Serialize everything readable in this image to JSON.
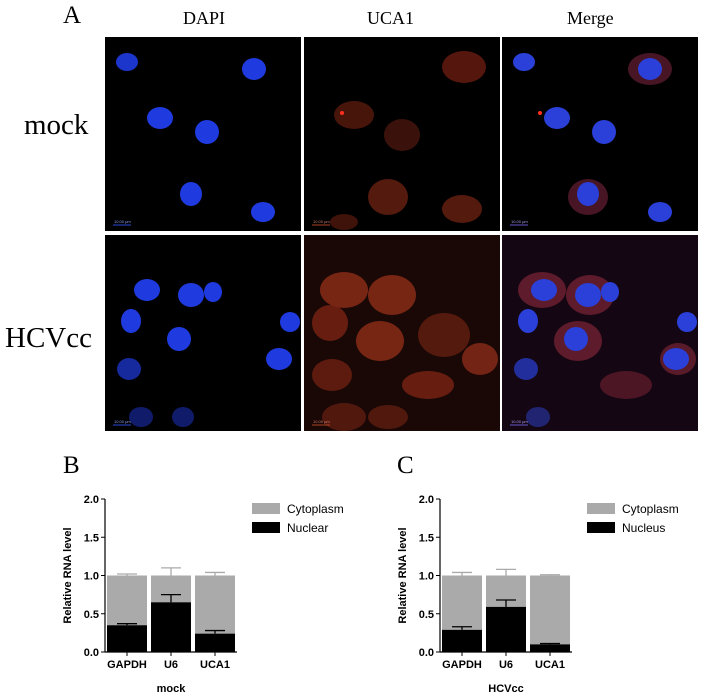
{
  "panelA": {
    "letter": "A",
    "columns": [
      "DAPI",
      "UCA1",
      "Merge"
    ],
    "rows": [
      "mock",
      "HCVcc"
    ],
    "scale_bar_text": "10.00 μm"
  },
  "panelB": {
    "letter": "B",
    "xlabel": "mock",
    "ylabel": "Relative RNA level",
    "legend": [
      "Cytoplasm",
      "Nuclear"
    ]
  },
  "panelC": {
    "letter": "C",
    "xlabel": "HCVcc",
    "ylabel": "Relative RNA level",
    "legend": [
      "Cytoplasm",
      "Nucleus"
    ]
  },
  "colors": {
    "cytoplasm": "#aaaaaa",
    "nuclear": "#000000",
    "dapi": "#1a30d8",
    "uca1": "#b8321a"
  },
  "chart_data": [
    {
      "type": "bar",
      "stacked": true,
      "categories": [
        "GAPDH",
        "U6",
        "UCA1"
      ],
      "series": [
        {
          "name": "Nuclear",
          "values": [
            0.35,
            0.65,
            0.24
          ],
          "error": [
            0.02,
            0.1,
            0.04
          ]
        },
        {
          "name": "Cytoplasm",
          "values": [
            0.65,
            0.35,
            0.76
          ],
          "error": [
            0.02,
            0.1,
            0.04
          ]
        }
      ],
      "xlabel": "mock",
      "ylabel": "Relative RNA level",
      "ylim": [
        0,
        2.0
      ],
      "yticks": [
        "0.0",
        "0.5",
        "1.0",
        "1.5",
        "2.0"
      ],
      "legend_position": "top-right"
    },
    {
      "type": "bar",
      "stacked": true,
      "categories": [
        "GAPDH",
        "U6",
        "UCA1"
      ],
      "series": [
        {
          "name": "Nucleus",
          "values": [
            0.29,
            0.59,
            0.1
          ],
          "error": [
            0.04,
            0.09,
            0.01
          ]
        },
        {
          "name": "Cytoplasm",
          "values": [
            0.71,
            0.41,
            0.9
          ],
          "error": [
            0.04,
            0.08,
            0.01
          ]
        }
      ],
      "xlabel": "HCVcc",
      "ylabel": "Relative RNA level",
      "ylim": [
        0,
        2.0
      ],
      "yticks": [
        "0.0",
        "0.5",
        "1.0",
        "1.5",
        "2.0"
      ],
      "legend_position": "top-right"
    }
  ]
}
